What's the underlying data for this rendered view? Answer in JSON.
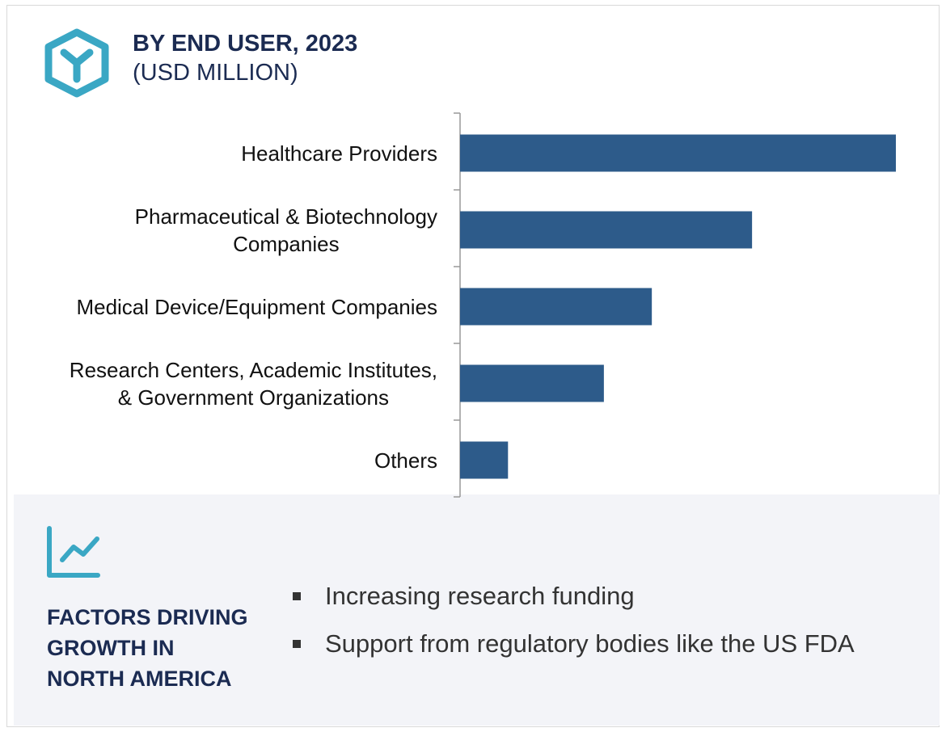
{
  "chart_data": {
    "type": "bar",
    "orientation": "horizontal",
    "title": "BY END USER, 2023",
    "subtitle": "(USD MILLION)",
    "categories": [
      "Healthcare Providers",
      "Pharmaceutical & Biotechnology\nCompanies",
      "Medical Device/Equipment Companies",
      "Research Centers, Academic Institutes,\n& Government Organizations",
      "Others"
    ],
    "values": [
      100,
      67,
      44,
      33,
      11
    ],
    "color": "#2d5b8a"
  },
  "factors": {
    "title": "FACTORS DRIVING\nGROWTH IN\nNORTH AMERICA",
    "items": [
      "Increasing research funding",
      "Support from regulatory bodies like the US FDA"
    ]
  }
}
